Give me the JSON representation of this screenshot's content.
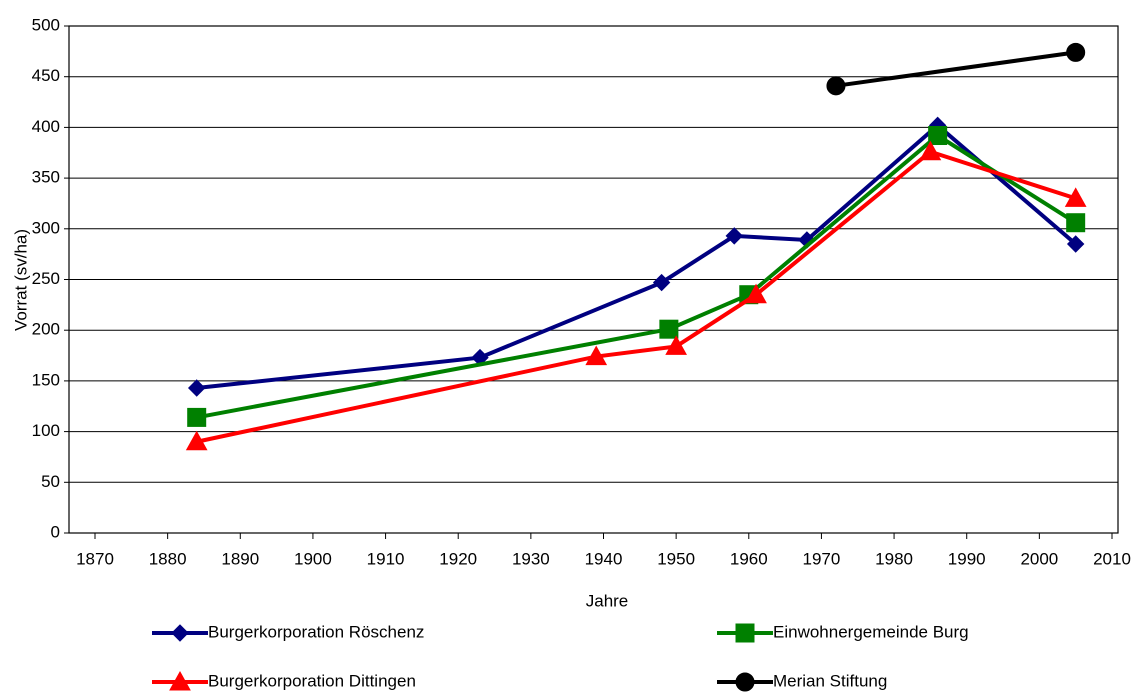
{
  "chart_data": {
    "type": "line",
    "xlabel": "Jahre",
    "ylabel": "Vorrat (sv/ha)",
    "xlim": [
      1870,
      2010
    ],
    "xticks": [
      1870,
      1880,
      1890,
      1900,
      1910,
      1920,
      1930,
      1940,
      1950,
      1960,
      1970,
      1980,
      1990,
      2000,
      2010
    ],
    "ylim": [
      0,
      500
    ],
    "yticks": [
      0,
      50,
      100,
      150,
      200,
      250,
      300,
      350,
      400,
      450,
      500
    ],
    "grid": true,
    "legend": "bottom",
    "series": [
      {
        "name": "Burgerkorporation Röschenz",
        "color": "#000080",
        "marker": "diamond",
        "x": [
          1884,
          1923,
          1948,
          1958,
          1968,
          1986,
          2005
        ],
        "values": [
          143,
          173,
          247,
          293,
          289,
          402,
          285
        ]
      },
      {
        "name": "Einwohnergemeinde Burg",
        "color": "#008000",
        "marker": "square",
        "x": [
          1884,
          1949,
          1960,
          1986,
          2005
        ],
        "values": [
          114,
          201,
          235,
          392,
          306
        ]
      },
      {
        "name": "Burgerkorporation Dittingen",
        "color": "#ff0000",
        "marker": "triangle",
        "x": [
          1884,
          1939,
          1950,
          1961,
          1985,
          2005
        ],
        "values": [
          90,
          174,
          184,
          235,
          376,
          330
        ]
      },
      {
        "name": "Merian Stiftung",
        "color": "#000000",
        "marker": "circle",
        "x": [
          1972,
          2005
        ],
        "values": [
          441,
          474
        ]
      }
    ]
  }
}
